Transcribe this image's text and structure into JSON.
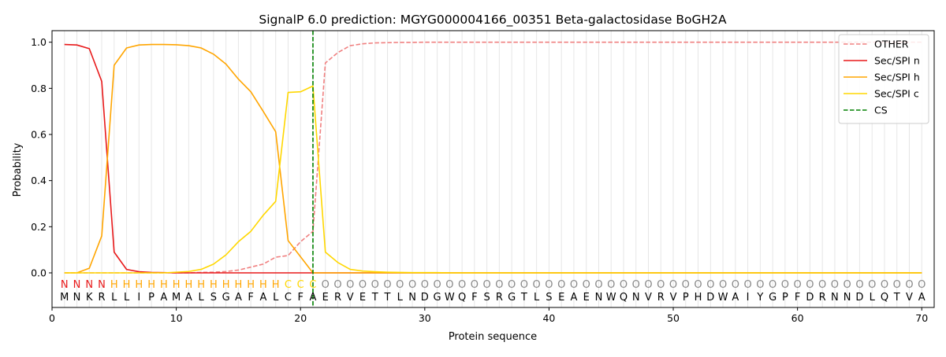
{
  "chart_data": {
    "type": "line",
    "title": "SignalP 6.0 prediction: MGYG000004166_00351 Beta-galactosidase BoGH2A",
    "xlabel": "Protein sequence",
    "ylabel": "Probability",
    "xlim": [
      0,
      71
    ],
    "ylim": [
      -0.15,
      1.05
    ],
    "x_ticks": [
      0,
      10,
      20,
      30,
      40,
      50,
      60,
      70
    ],
    "y_ticks": [
      0.0,
      0.2,
      0.4,
      0.6,
      0.8,
      1.0
    ],
    "grid": "vertical lines at each residue position",
    "legend_position": "top-right",
    "x": [
      1,
      2,
      3,
      4,
      5,
      6,
      7,
      8,
      9,
      10,
      11,
      12,
      13,
      14,
      15,
      16,
      17,
      18,
      19,
      20,
      21,
      22,
      23,
      24,
      25,
      26,
      27,
      28,
      29,
      30,
      31,
      32,
      33,
      34,
      35,
      36,
      37,
      38,
      39,
      40,
      41,
      42,
      43,
      44,
      45,
      46,
      47,
      48,
      49,
      50,
      51,
      52,
      53,
      54,
      55,
      56,
      57,
      58,
      59,
      60,
      61,
      62,
      63,
      64,
      65,
      66,
      67,
      68,
      69,
      70
    ],
    "series": [
      {
        "name": "OTHER",
        "color": "#f08080",
        "dash": "dashed",
        "values": [
          0.0,
          0.0,
          0.0,
          0.0,
          0.0,
          0.0,
          0.0,
          0.0,
          0.0,
          0.0,
          0.0,
          0.002,
          0.003,
          0.006,
          0.012,
          0.025,
          0.038,
          0.068,
          0.075,
          0.135,
          0.18,
          0.91,
          0.955,
          0.985,
          0.993,
          0.997,
          0.998,
          0.999,
          0.999,
          1.0,
          1.0,
          1.0,
          1.0,
          1.0,
          1.0,
          1.0,
          1.0,
          1.0,
          1.0,
          1.0,
          1.0,
          1.0,
          1.0,
          1.0,
          1.0,
          1.0,
          1.0,
          1.0,
          1.0,
          1.0,
          1.0,
          1.0,
          1.0,
          1.0,
          1.0,
          1.0,
          1.0,
          1.0,
          1.0,
          1.0,
          1.0,
          1.0,
          1.0,
          1.0,
          1.0,
          1.0,
          1.0,
          1.0,
          1.0,
          1.0
        ]
      },
      {
        "name": "Sec/SPI n",
        "color": "#e8191a",
        "dash": "solid",
        "values": [
          0.99,
          0.988,
          0.972,
          0.83,
          0.09,
          0.015,
          0.005,
          0.002,
          0.001,
          0.0,
          0.0,
          0.0,
          0.0,
          0.0,
          0.0,
          0.0,
          0.0,
          0.0,
          0.0,
          0.0,
          0.0,
          0.0,
          0.0,
          0.0,
          0.0,
          0.0,
          0.0,
          0.0,
          0.0,
          0.0,
          0.0,
          0.0,
          0.0,
          0.0,
          0.0,
          0.0,
          0.0,
          0.0,
          0.0,
          0.0,
          0.0,
          0.0,
          0.0,
          0.0,
          0.0,
          0.0,
          0.0,
          0.0,
          0.0,
          0.0,
          0.0,
          0.0,
          0.0,
          0.0,
          0.0,
          0.0,
          0.0,
          0.0,
          0.0,
          0.0,
          0.0,
          0.0,
          0.0,
          0.0,
          0.0,
          0.0,
          0.0,
          0.0,
          0.0,
          0.0
        ]
      },
      {
        "name": "Sec/SPI h",
        "color": "#ffa500",
        "dash": "solid",
        "values": [
          0.0,
          0.0,
          0.02,
          0.16,
          0.9,
          0.975,
          0.988,
          0.99,
          0.99,
          0.989,
          0.985,
          0.975,
          0.948,
          0.905,
          0.84,
          0.785,
          0.7,
          0.612,
          0.14,
          0.07,
          0.0,
          0.0,
          0.0,
          0.0,
          0.0,
          0.0,
          0.0,
          0.0,
          0.0,
          0.0,
          0.0,
          0.0,
          0.0,
          0.0,
          0.0,
          0.0,
          0.0,
          0.0,
          0.0,
          0.0,
          0.0,
          0.0,
          0.0,
          0.0,
          0.0,
          0.0,
          0.0,
          0.0,
          0.0,
          0.0,
          0.0,
          0.0,
          0.0,
          0.0,
          0.0,
          0.0,
          0.0,
          0.0,
          0.0,
          0.0,
          0.0,
          0.0,
          0.0,
          0.0,
          0.0,
          0.0,
          0.0,
          0.0,
          0.0,
          0.0
        ]
      },
      {
        "name": "Sec/SPI c",
        "color": "#ffd700",
        "dash": "solid",
        "values": [
          0.0,
          0.0,
          0.0,
          0.0,
          0.0,
          0.0,
          0.0,
          0.0,
          0.0,
          0.003,
          0.006,
          0.015,
          0.038,
          0.078,
          0.135,
          0.18,
          0.25,
          0.31,
          0.782,
          0.785,
          0.81,
          0.09,
          0.045,
          0.015,
          0.008,
          0.005,
          0.003,
          0.002,
          0.001,
          0.001,
          0.001,
          0.0,
          0.0,
          0.0,
          0.0,
          0.0,
          0.0,
          0.0,
          0.0,
          0.0,
          0.0,
          0.0,
          0.0,
          0.0,
          0.0,
          0.0,
          0.0,
          0.0,
          0.0,
          0.0,
          0.0,
          0.0,
          0.0,
          0.0,
          0.0,
          0.0,
          0.0,
          0.0,
          0.0,
          0.0,
          0.0,
          0.0,
          0.0,
          0.0,
          0.0,
          0.0,
          0.0,
          0.0,
          0.0,
          0.0
        ]
      }
    ],
    "cleavage_site": {
      "name": "CS",
      "x": 21,
      "color": "#008000",
      "dash": "dashed"
    },
    "sequence": [
      "M",
      "N",
      "K",
      "R",
      "L",
      "L",
      "I",
      "P",
      "A",
      "M",
      "A",
      "L",
      "S",
      "G",
      "A",
      "F",
      "A",
      "L",
      "C",
      "F",
      "A",
      "E",
      "R",
      "V",
      "E",
      "T",
      "T",
      "L",
      "N",
      "D",
      "G",
      "W",
      "Q",
      "F",
      "S",
      "R",
      "G",
      "T",
      "L",
      "S",
      "E",
      "A",
      "E",
      "N",
      "W",
      "Q",
      "N",
      "V",
      "R",
      "V",
      "P",
      "H",
      "D",
      "W",
      "A",
      "I",
      "Y",
      "G",
      "P",
      "F",
      "D",
      "R",
      "N",
      "N",
      "D",
      "L",
      "Q",
      "T",
      "V",
      "A"
    ],
    "region_labels": [
      "N",
      "N",
      "N",
      "N",
      "H",
      "H",
      "H",
      "H",
      "H",
      "H",
      "H",
      "H",
      "H",
      "H",
      "H",
      "H",
      "H",
      "H",
      "C",
      "C",
      "C",
      "O",
      "O",
      "O",
      "O",
      "O",
      "O",
      "O",
      "O",
      "O",
      "O",
      "O",
      "O",
      "O",
      "O",
      "O",
      "O",
      "O",
      "O",
      "O",
      "O",
      "O",
      "O",
      "O",
      "O",
      "O",
      "O",
      "O",
      "O",
      "O",
      "O",
      "O",
      "O",
      "O",
      "O",
      "O",
      "O",
      "O",
      "O",
      "O",
      "O",
      "O",
      "O",
      "O",
      "O",
      "O",
      "O",
      "O",
      "O",
      "O"
    ],
    "region_colors": {
      "N": "#e8191a",
      "H": "#ffa500",
      "C": "#ffd700",
      "O": "#888888"
    }
  }
}
